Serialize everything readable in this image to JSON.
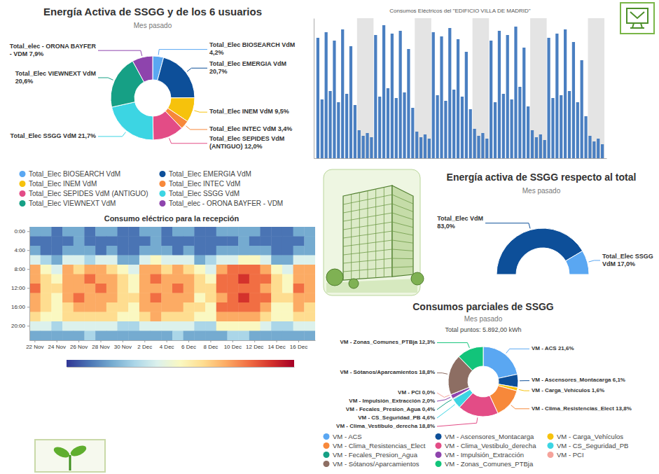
{
  "chart_data": [
    {
      "type": "pie",
      "title": "Energía Activa de SSGG y de los 6 usuarios",
      "subtitle": "Mes pasado",
      "categories": [
        "Total_Elec BIOSEARCH VdM",
        "Total_Elec EMERGIA VdM",
        "Total_Elec INEM VdM",
        "Total_Elec INTEC VdM",
        "Total_Elec SEPIDES VdM (ANTIGUO)",
        "Total_Elec SSGG VdM",
        "Total_Elec VIEWNEXT VdM",
        "Total_elec - ORONA BAYFER - VDM"
      ],
      "values": [
        4.2,
        20.7,
        9.5,
        3.4,
        12.0,
        21.7,
        20.6,
        7.9
      ],
      "value_labels": [
        "4,2%",
        "20,7%",
        "9,5%",
        "3,4%",
        "12,0%",
        "21,7%",
        "20,6%",
        "7,9%"
      ],
      "colors": [
        "#5aa7f2",
        "#0d4f99",
        "#f6c20c",
        "#f7883a",
        "#e34c86",
        "#3cd5e3",
        "#16a085",
        "#8e44ad"
      ],
      "data_labels": true,
      "legend": "bottom"
    },
    {
      "type": "bar",
      "title": "Consumos Eléctricos del \"EDIFICIO VILLA DE MADRID\"",
      "x": [
        0,
        0.5,
        1,
        1.5,
        2,
        2.5,
        3,
        3.5,
        4,
        4.5,
        5,
        5.5,
        6,
        6.5,
        7,
        7.5,
        8,
        8.5,
        9,
        9.5,
        10,
        10.5,
        11,
        11.5,
        12,
        12.5,
        13,
        13.5,
        14,
        14.5,
        15,
        15.5,
        16,
        16.5,
        17,
        17.5,
        18,
        18.5,
        19,
        19.5,
        20,
        20.5,
        21,
        21.5,
        22,
        22.5,
        23,
        23.5,
        24,
        24.5,
        25,
        25.5,
        26,
        26.5,
        27,
        27.5,
        28,
        28.5,
        29,
        29.5,
        30,
        30.5,
        31,
        31.5,
        32,
        32.5,
        33,
        33.5,
        34,
        34.5
      ],
      "values": [
        86,
        42,
        90,
        48,
        84,
        40,
        92,
        46,
        80,
        38,
        20,
        16,
        18,
        15,
        88,
        44,
        95,
        50,
        89,
        43,
        91,
        47,
        78,
        36,
        19,
        15,
        17,
        14,
        90,
        45,
        87,
        41,
        93,
        49,
        85,
        44,
        76,
        35,
        21,
        16,
        18,
        14,
        84,
        40,
        91,
        46,
        88,
        42,
        94,
        51,
        79,
        37,
        20,
        15,
        17,
        13,
        86,
        43,
        89,
        45,
        92,
        48,
        83,
        40,
        70,
        30,
        16,
        12,
        14,
        10
      ],
      "color": "#4a7fc1",
      "xlim": [
        -0.5,
        35
      ],
      "ylim": [
        0,
        100
      ],
      "tick_labels": false,
      "shaded_ranges": [
        [
          4.75,
          6.75
        ],
        [
          11.75,
          13.75
        ],
        [
          18.75,
          20.75
        ],
        [
          25.75,
          27.75
        ],
        [
          32.75,
          34.75
        ]
      ]
    },
    {
      "type": "heatmap",
      "title": "Consumo eléctrico para la recepción",
      "categories": [
        "22 Nov",
        null,
        "24 Nov",
        null,
        "26 Nov",
        null,
        "28 Nov",
        null,
        "30 Nov",
        null,
        "2 Dec",
        null,
        "4 Dec",
        null,
        "6 Dec",
        null,
        "8 Dec",
        null,
        "10 Dec",
        null,
        "12 Dec",
        null,
        "14 Dec",
        null,
        "16 Dec",
        null
      ],
      "y_categories": [
        "0:00",
        null,
        "4:00",
        null,
        "8:00",
        null,
        "12:00",
        null,
        "16:00",
        null,
        "20:00",
        null
      ],
      "cells": [
        [
          2,
          2,
          1,
          2,
          2,
          1,
          2,
          2,
          1,
          1,
          2,
          2,
          1,
          2,
          2,
          1,
          1,
          2,
          2,
          2,
          2,
          1,
          1,
          1,
          2,
          2
        ],
        [
          1,
          1,
          1,
          1,
          2,
          1,
          1,
          1,
          1,
          1,
          1,
          2,
          1,
          1,
          1,
          1,
          1,
          1,
          1,
          2,
          1,
          1,
          1,
          1,
          1,
          2
        ],
        [
          2,
          1,
          1,
          2,
          2,
          2,
          1,
          2,
          1,
          1,
          2,
          2,
          2,
          1,
          2,
          1,
          1,
          2,
          2,
          2,
          2,
          2,
          1,
          1,
          2,
          2
        ],
        [
          4,
          3,
          2,
          4,
          4,
          3,
          4,
          4,
          2,
          2,
          4,
          5,
          4,
          4,
          4,
          2,
          3,
          4,
          4,
          5,
          5,
          4,
          2,
          2,
          4,
          4
        ],
        [
          7,
          5,
          4,
          7,
          6,
          7,
          7,
          6,
          5,
          4,
          7,
          7,
          6,
          7,
          6,
          5,
          4,
          7,
          8,
          8,
          8,
          7,
          5,
          4,
          7,
          7
        ],
        [
          7,
          6,
          5,
          7,
          7,
          8,
          7,
          7,
          6,
          5,
          7,
          8,
          7,
          7,
          7,
          6,
          5,
          8,
          8,
          9,
          8,
          8,
          6,
          5,
          7,
          7
        ],
        [
          8,
          6,
          6,
          7,
          7,
          7,
          8,
          7,
          6,
          5,
          7,
          7,
          7,
          8,
          7,
          6,
          6,
          8,
          8,
          8,
          8,
          7,
          6,
          5,
          8,
          7
        ],
        [
          7,
          6,
          5,
          7,
          8,
          7,
          7,
          7,
          6,
          6,
          7,
          8,
          7,
          7,
          7,
          5,
          6,
          7,
          8,
          9,
          8,
          8,
          6,
          6,
          7,
          7
        ],
        [
          7,
          6,
          5,
          6,
          7,
          7,
          7,
          6,
          6,
          5,
          7,
          7,
          7,
          7,
          6,
          6,
          5,
          8,
          8,
          8,
          8,
          7,
          5,
          5,
          7,
          6
        ],
        [
          6,
          5,
          5,
          6,
          6,
          6,
          6,
          6,
          5,
          5,
          6,
          7,
          6,
          6,
          6,
          5,
          5,
          7,
          7,
          7,
          7,
          6,
          5,
          5,
          6,
          6
        ],
        [
          4,
          4,
          3,
          4,
          4,
          4,
          4,
          4,
          3,
          3,
          4,
          4,
          4,
          4,
          4,
          3,
          3,
          5,
          5,
          5,
          5,
          4,
          3,
          3,
          4,
          4
        ],
        [
          2,
          2,
          2,
          2,
          2,
          3,
          2,
          2,
          2,
          2,
          2,
          2,
          2,
          3,
          2,
          2,
          2,
          2,
          3,
          3,
          2,
          2,
          2,
          2,
          2,
          2
        ]
      ],
      "color_range": [
        0,
        10
      ]
    },
    {
      "type": "gauge",
      "title": "Energía activa de SSGG respecto al total",
      "subtitle": "Mes pasado",
      "categories": [
        "Total_Elec VdM",
        "Total_Elec SSGG VdM"
      ],
      "values": [
        83.0,
        17.0
      ],
      "value_labels": [
        "83,0%",
        "17,0%"
      ],
      "colors": [
        "#0d4f99",
        "#5aa7f2"
      ],
      "data_labels": true
    },
    {
      "type": "pie",
      "title": "Consumos parciales de SSGG",
      "subtitle": "Mes pasado",
      "annotation": "Total puntos: 5.892,00 kWh",
      "categories": [
        "VM - ACS",
        "VM - Ascensores_Montacarga",
        "VM - Carga_Vehículos",
        "VM - Clima_Resistencias_Elect",
        "VM - Clima_Vestibulo_derecha",
        "VM - CS_Seguridad_PB",
        "VM - Fecales_Presion_Agua",
        "VM - Impulsión_Extracción",
        "VM - PCI",
        "VM - Sótanos/Aparcamientos",
        "VM - Zonas_Comunes_PTBja"
      ],
      "values": [
        21.6,
        6.1,
        1.6,
        13.8,
        18.8,
        4.6,
        0.4,
        2.0,
        0,
        18.8,
        12.3
      ],
      "value_labels": [
        "21,6%",
        "6,1%",
        "1,6%",
        "13,8%",
        "18,8%",
        "4,6%",
        "0,4%",
        "2,0%",
        "0,0%",
        "18,8%",
        "12,3%"
      ],
      "colors": [
        "#5aa7f2",
        "#0d4f99",
        "#f6c20c",
        "#f7883a",
        "#e34c86",
        "#3cd5e3",
        "#16a085",
        "#8e44ad",
        "#f5a39b",
        "#8d6e63",
        "#12c47a"
      ],
      "data_labels": true,
      "legend": "bottom"
    }
  ]
}
